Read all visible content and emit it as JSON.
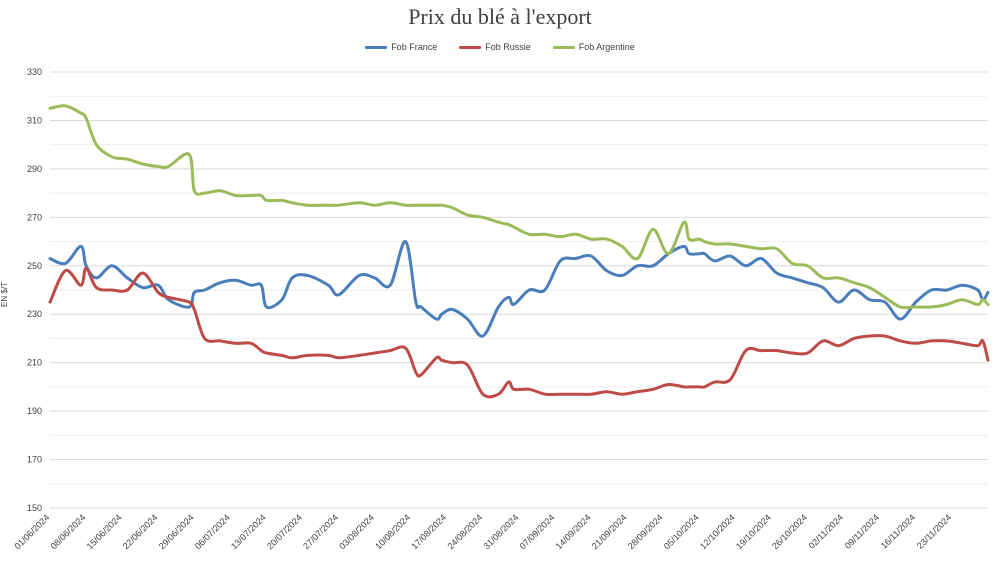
{
  "chart_data": {
    "type": "line",
    "title": "Prix du blé à l'export",
    "ylabel": "EN $/T",
    "ylim": [
      150,
      330
    ],
    "yticks": [
      150,
      170,
      190,
      210,
      230,
      250,
      270,
      290,
      310,
      330
    ],
    "xtick_labels": [
      "01/06/2024",
      "08/06/2024",
      "15/06/2024",
      "22/06/2024",
      "29/06/2024",
      "06/07/2024",
      "13/07/2024",
      "20/07/2024",
      "27/07/2024",
      "03/08/2024",
      "10/08/2024",
      "17/08/2024",
      "24/08/2024",
      "31/08/2024",
      "07/09/2024",
      "14/09/2024",
      "21/09/2024",
      "28/09/2024",
      "05/10/2024",
      "12/10/2024",
      "19/10/2024",
      "26/10/2024",
      "02/11/2024",
      "09/11/2024",
      "16/11/2024",
      "23/11/2024"
    ],
    "x_days": [
      0,
      3,
      6,
      7,
      9,
      12,
      15,
      18,
      21,
      23,
      27,
      28,
      30,
      33,
      36,
      39,
      41,
      42,
      45,
      47,
      50,
      54,
      56,
      60,
      63,
      66,
      69,
      71,
      72,
      75,
      76,
      78,
      81,
      84,
      87,
      89,
      90,
      93,
      96,
      99,
      102,
      105,
      108,
      111,
      114,
      117,
      120,
      123,
      124,
      126,
      127,
      129,
      132,
      135,
      138,
      141,
      144,
      147,
      150,
      153,
      156,
      159,
      162,
      165,
      168,
      171,
      174,
      177,
      180,
      181,
      182
    ],
    "x_dates": [
      "01/06/2024",
      "04/06/2024",
      "07/06/2024",
      "08/06/2024",
      "10/06/2024",
      "13/06/2024",
      "16/06/2024",
      "19/06/2024",
      "22/06/2024",
      "24/06/2024",
      "28/06/2024",
      "29/06/2024",
      "01/07/2024",
      "04/07/2024",
      "07/07/2024",
      "10/07/2024",
      "12/07/2024",
      "13/07/2024",
      "16/07/2024",
      "18/07/2024",
      "21/07/2024",
      "25/07/2024",
      "27/07/2024",
      "31/07/2024",
      "03/08/2024",
      "06/08/2024",
      "09/08/2024",
      "11/08/2024",
      "12/08/2024",
      "15/08/2024",
      "16/08/2024",
      "18/08/2024",
      "21/08/2024",
      "24/08/2024",
      "27/08/2024",
      "29/08/2024",
      "30/08/2024",
      "02/09/2024",
      "05/09/2024",
      "08/09/2024",
      "11/09/2024",
      "14/09/2024",
      "17/09/2024",
      "20/09/2024",
      "23/09/2024",
      "26/09/2024",
      "29/09/2024",
      "02/10/2024",
      "03/10/2024",
      "05/10/2024",
      "06/10/2024",
      "08/10/2024",
      "11/10/2024",
      "14/10/2024",
      "17/10/2024",
      "20/10/2024",
      "23/10/2024",
      "26/10/2024",
      "29/10/2024",
      "01/11/2024",
      "04/11/2024",
      "07/11/2024",
      "10/11/2024",
      "13/11/2024",
      "16/11/2024",
      "19/11/2024",
      "22/11/2024",
      "25/11/2024",
      "28/11/2024",
      "29/11/2024",
      "30/11/2024"
    ],
    "series": [
      {
        "name": "Fob France",
        "color": "#4a7ebb",
        "values": [
          253,
          251,
          258,
          250,
          245,
          250,
          245,
          241,
          242,
          236,
          233,
          239,
          240,
          243,
          244,
          242,
          242,
          233,
          236,
          245,
          246,
          242,
          238,
          246,
          245,
          242,
          260,
          235,
          233,
          228,
          230,
          232,
          228,
          221,
          233,
          237,
          234,
          240,
          240,
          252,
          253,
          254,
          248,
          246,
          250,
          250,
          255,
          258,
          255,
          255,
          255,
          252,
          254,
          250,
          253,
          247,
          245,
          243,
          241,
          235,
          240,
          236,
          235,
          228,
          235,
          240,
          240,
          242,
          240,
          236,
          239
        ]
      },
      {
        "name": "Fob Russie",
        "color": "#be4b48",
        "values": [
          235,
          248,
          242,
          249,
          241,
          240,
          240,
          247,
          239,
          237,
          235,
          232,
          220,
          219,
          218,
          218,
          215,
          214,
          213,
          212,
          213,
          213,
          212,
          213,
          214,
          215,
          216,
          206,
          205,
          212,
          211,
          210,
          209,
          197,
          197,
          202,
          199,
          199,
          197,
          197,
          197,
          197,
          198,
          197,
          198,
          199,
          201,
          200,
          200,
          200,
          200,
          202,
          203,
          215,
          215,
          215,
          214,
          214,
          219,
          217,
          220,
          221,
          221,
          219,
          218,
          219,
          219,
          218,
          217,
          219,
          211
        ]
      },
      {
        "name": "Fob Argentine",
        "color": "#9bbb59",
        "values": [
          315,
          316,
          313,
          311,
          300,
          295,
          294,
          292,
          291,
          291,
          296,
          281,
          280,
          281,
          279,
          279,
          279,
          277,
          277,
          276,
          275,
          275,
          275,
          276,
          275,
          276,
          275,
          275,
          275,
          275,
          275,
          274,
          271,
          270,
          268,
          267,
          266,
          263,
          263,
          262,
          263,
          261,
          261,
          258,
          253,
          265,
          255,
          268,
          261,
          261,
          260,
          259,
          259,
          258,
          257,
          257,
          251,
          250,
          245,
          245,
          243,
          241,
          237,
          233,
          233,
          233,
          234,
          236,
          234,
          236,
          234
        ]
      }
    ]
  }
}
